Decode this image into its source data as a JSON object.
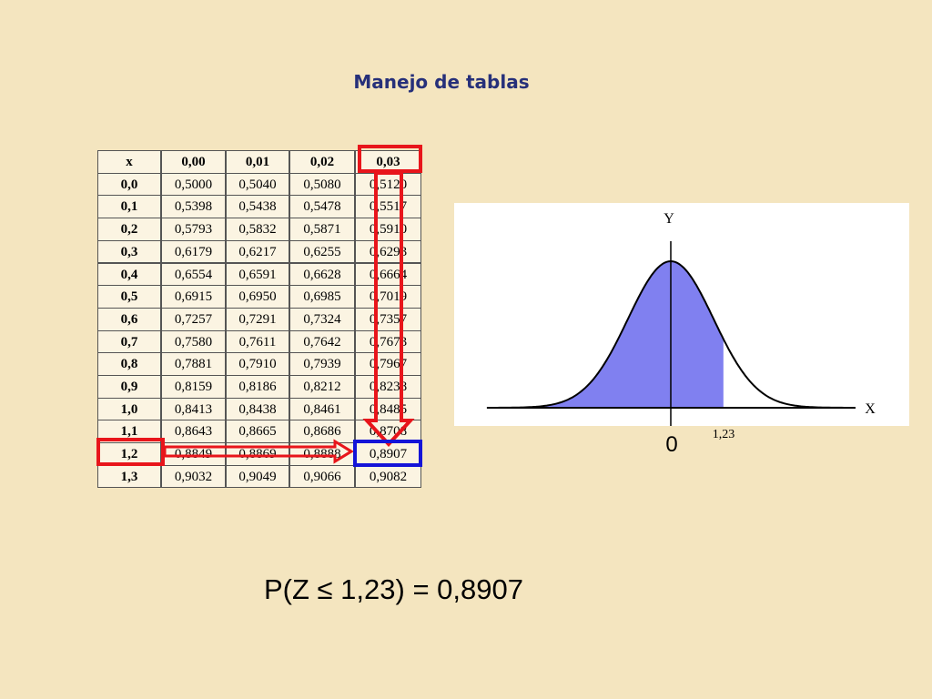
{
  "title": "Manejo de tablas",
  "table": {
    "header": [
      "x",
      "0,00",
      "0,01",
      "0,02",
      "0,03"
    ],
    "rows": [
      [
        "0,0",
        "0,5000",
        "0,5040",
        "0,5080",
        "0,5120"
      ],
      [
        "0,1",
        "0,5398",
        "0,5438",
        "0,5478",
        "0,5517"
      ],
      [
        "0,2",
        "0,5793",
        "0,5832",
        "0,5871",
        "0,5910"
      ],
      [
        "0,3",
        "0,6179",
        "0,6217",
        "0,6255",
        "0,6293"
      ],
      [
        "0,4",
        "0,6554",
        "0,6591",
        "0,6628",
        "0,6664"
      ],
      [
        "0,5",
        "0,6915",
        "0,6950",
        "0,6985",
        "0,7019"
      ],
      [
        "0,6",
        "0,7257",
        "0,7291",
        "0,7324",
        "0,7357"
      ],
      [
        "0,7",
        "0,7580",
        "0,7611",
        "0,7642",
        "0,7673"
      ],
      [
        "0,8",
        "0,7881",
        "0,7910",
        "0,7939",
        "0,7967"
      ],
      [
        "0,9",
        "0,8159",
        "0,8186",
        "0,8212",
        "0,8238"
      ],
      [
        "1,0",
        "0,8413",
        "0,8438",
        "0,8461",
        "0,8485"
      ],
      [
        "1,1",
        "0,8643",
        "0,8665",
        "0,8686",
        "0,8708"
      ],
      [
        "1,2",
        "0,8849",
        "0,8869",
        "0,8888",
        "0,8907"
      ],
      [
        "1,3",
        "0,9032",
        "0,9049",
        "0,9066",
        "0,9082"
      ]
    ]
  },
  "figure": {
    "y_label": "Y",
    "x_label": "X",
    "origin_label": "0",
    "z_label": "1,23"
  },
  "formula": "P(Z ≤ 1,23) = 0,8907"
}
